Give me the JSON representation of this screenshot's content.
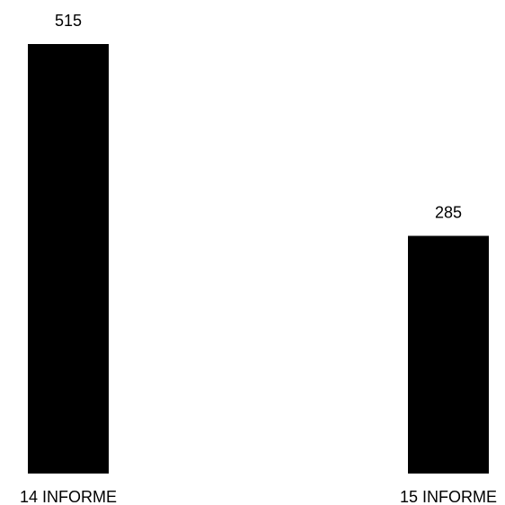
{
  "chart_data": {
    "type": "bar",
    "categories": [
      "14 INFORME",
      "15 INFORME"
    ],
    "values": [
      515,
      285
    ],
    "data_labels": [
      "515",
      "285"
    ],
    "title": "",
    "xlabel": "",
    "ylabel": "",
    "ylim": [
      0,
      515
    ],
    "grid": false,
    "legend": "none",
    "bar_color": "#000000"
  }
}
